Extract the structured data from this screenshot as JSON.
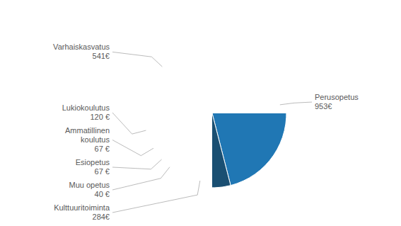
{
  "chart_data": {
    "type": "pie",
    "categories": [
      "Perusopetus",
      "Kulttuuritoiminta",
      "Muu opetus",
      "Esiopetus",
      "Ammatillinen\nkoulutus",
      "Lukiokoulutus",
      "Varhaiskasvatus"
    ],
    "values": [
      953,
      284,
      40,
      67,
      67,
      120,
      541
    ],
    "value_labels": [
      "953€",
      "284€",
      "40 €",
      "67 €",
      "67 €",
      "120 €",
      "541€"
    ],
    "colors": [
      "#2077B4",
      "#1A4F72",
      "#E91E8C",
      "#9C27B0",
      "#F57C00",
      "#C6E020",
      "#00BCD4"
    ],
    "data_labels": true
  }
}
